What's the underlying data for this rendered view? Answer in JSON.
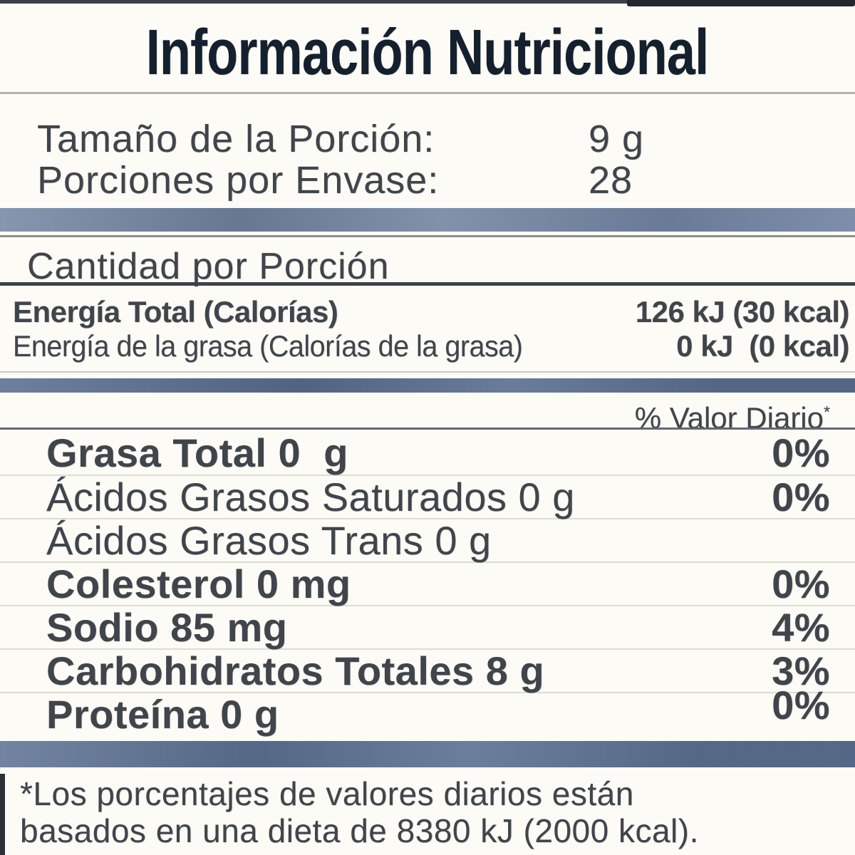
{
  "title": "Información Nutricional",
  "serving_rows": [
    {
      "label": "Tamaño de la Porción:",
      "value": "9 g"
    },
    {
      "label": "Porciones por Envase:",
      "value": "28"
    }
  ],
  "section_header": "Cantidad por Porción",
  "energy_rows": [
    {
      "label": "Energía Total (Calorías)",
      "value": "126 kJ (30 kcal)",
      "bold": true
    },
    {
      "label": "Energía de la grasa (Calorías de la grasa)",
      "value": "0 kJ  (0 kcal)",
      "condensed": true
    }
  ],
  "daily_value": {
    "header": "% Valor Diario",
    "mark": "*"
  },
  "nutrients": [
    {
      "label": "Grasa Total",
      "amount": "0  g",
      "dv": "0%",
      "bold": true
    },
    {
      "label": "Ácidos Grasos Saturados",
      "amount": "0 g",
      "dv": "0%"
    },
    {
      "label": "Ácidos Grasos Trans",
      "amount": "0 g",
      "dv": ""
    },
    {
      "label": "Colesterol",
      "amount": "0 mg",
      "dv": "0%",
      "bold": true
    },
    {
      "label": "Sodio",
      "amount": "85 mg",
      "dv": "4%",
      "bold": true
    },
    {
      "label": "Carbohidratos Totales",
      "amount": "8 g",
      "dv": "3%",
      "bold": true
    },
    {
      "label": "Proteína",
      "amount": "0 g",
      "dv": "0%",
      "bold": true,
      "dv_raised": true
    }
  ],
  "footnote": {
    "line1": "*Los porcentajes de valores diarios están",
    "line2": "basados en una dieta de 8380 kJ (2000 kcal)."
  },
  "colors": {
    "bar_top": "#7285a3",
    "bar_mid": "#5c7193",
    "bar_bottom": "#5f7396",
    "title_text": "#15202e",
    "body_text": "#3f454b"
  }
}
